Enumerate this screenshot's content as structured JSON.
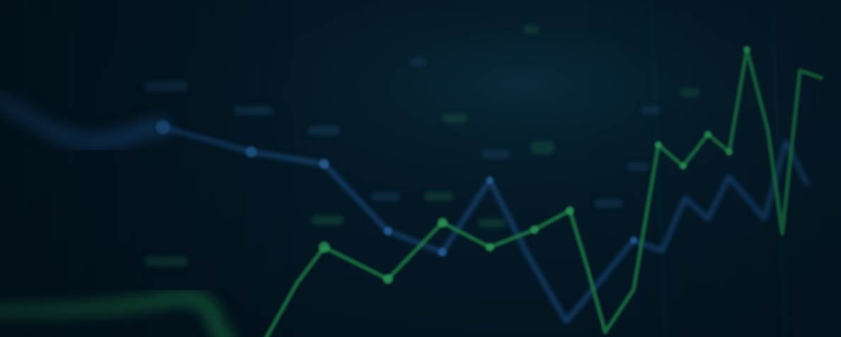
{
  "image": {
    "kind": "blurred-financial-chart-background",
    "colors": {
      "background": "#04131f",
      "blue_line": "#1d4f86",
      "green_line": "#1f7a45",
      "marker_blue": "#2a6aa8",
      "marker_green": "#2c9a57"
    }
  }
}
